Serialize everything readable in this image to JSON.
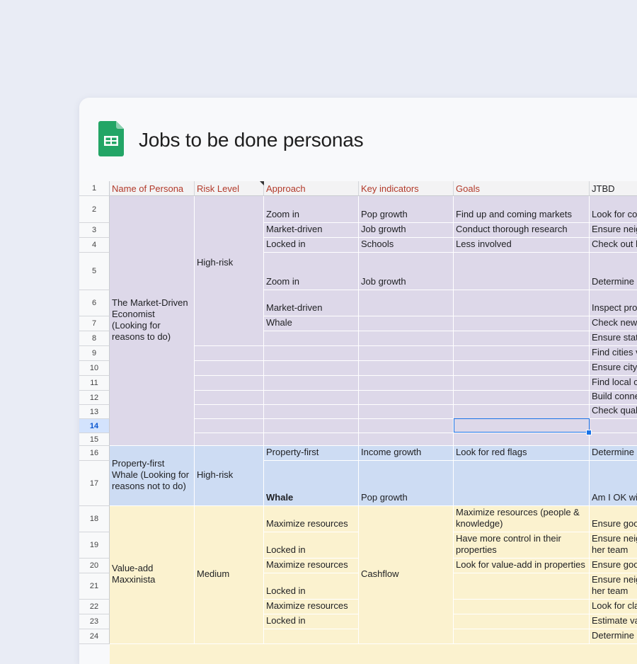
{
  "document": {
    "title": "Jobs to be done personas",
    "app_icon": "google-sheets-icon"
  },
  "colors": {
    "page_background": "#e9ecf5",
    "header_text": "#b23a2a",
    "persona_1_fill": "#ddd8e9",
    "persona_2_fill": "#cddcf3",
    "persona_3_fill": "#fbf2cf",
    "selection": "#1a73e8"
  },
  "headers": [
    "Name of Persona",
    "Risk Level",
    "Approach",
    "Key indicators",
    "Goals",
    "JTBD"
  ],
  "row_numbers": [
    "1",
    "2",
    "3",
    "4",
    "5",
    "6",
    "7",
    "8",
    "9",
    "10",
    "11",
    "12",
    "13",
    "14",
    "15",
    "16",
    "17",
    "18",
    "19",
    "20",
    "21",
    "22",
    "23",
    "24"
  ],
  "selected_row": "14",
  "personas": [
    {
      "name": "The Market-Driven Economist (Looking for reasons to do)",
      "risk": "High-risk"
    },
    {
      "name": "Property-first Whale (Looking for reasons not to do)",
      "risk": "High-risk"
    },
    {
      "name": "Value-add Maxxinista",
      "risk": "Medium"
    }
  ],
  "approach": {
    "r2": "Zoom in",
    "r3": "Market-driven",
    "r4": "Locked in",
    "r5": "Zoom in",
    "r6": "Market-driven",
    "r7": "Whale",
    "r16": "Property-first",
    "r17": "Whale",
    "r18": "Maximize resources",
    "r19": "Locked in",
    "r20": "Maximize resources",
    "r21": "Locked in",
    "r22": "Maximize resources",
    "r23": "Locked in"
  },
  "key_indicators": {
    "r2": "Pop growth",
    "r3": "Job growth",
    "r4": "Schools",
    "r5": "Job growth",
    "r16": "Income growth",
    "r17": "Pop growth",
    "r18_23": "Cashflow"
  },
  "goals": {
    "r2": "Find up and coming markets",
    "r3": "Conduct thorough research",
    "r4": "Less involved",
    "r16": "Look for red flags",
    "r18": "Maximize resources (people & knowledge)",
    "r19": "Have more control in their properties",
    "r20": "Look for value-add in properties"
  },
  "jtbd": {
    "r2": "Look for co",
    "r3": "Ensure neig",
    "r4": "Check out h",
    "r5": "Determine",
    "r6": "Inspect pro",
    "r7": "Check new",
    "r8": "Ensure stat",
    "r9": "Find cities v",
    "r10": "Ensure city'",
    "r11": "Find local c",
    "r12": "Build conne",
    "r13": "Check quali",
    "r16": "Determine",
    "r17": "Am I OK wit",
    "r18": "Ensure goo",
    "r19a": "Ensure neig",
    "r19b": "her team",
    "r20": "Ensure goo",
    "r21a": "Ensure neig",
    "r21b": "her team",
    "r22": "Look for cla",
    "r23": "Estimate va",
    "r24": "Determine"
  }
}
